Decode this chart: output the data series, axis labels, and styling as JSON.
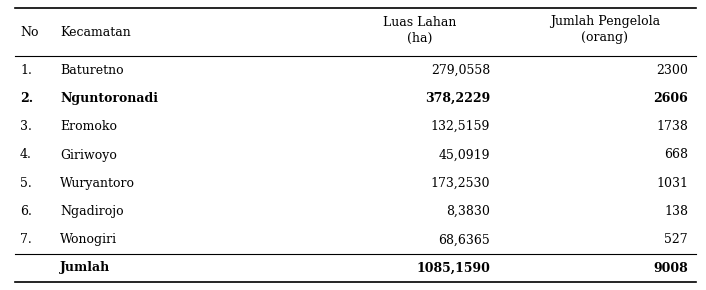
{
  "headers_line1": [
    "No",
    "Kecamatan",
    "Luas Lahan",
    "Jumlah Pengelola"
  ],
  "headers_line2": [
    "",
    "",
    "(ha)",
    "(orang)"
  ],
  "rows": [
    {
      "no": "1.",
      "kecamatan": "Baturetno",
      "luas": "279,0558",
      "jumlah": "2300",
      "bold": false
    },
    {
      "no": "2.",
      "kecamatan": "Nguntoronadi",
      "luas": "378,2229",
      "jumlah": "2606",
      "bold": true
    },
    {
      "no": "3.",
      "kecamatan": "Eromoko",
      "luas": "132,5159",
      "jumlah": "1738",
      "bold": false
    },
    {
      "no": "4.",
      "kecamatan": "Giriwoyo",
      "luas": "45,0919",
      "jumlah": "668",
      "bold": false
    },
    {
      "no": "5.",
      "kecamatan": "Wuryantoro",
      "luas": "173,2530",
      "jumlah": "1031",
      "bold": false
    },
    {
      "no": "6.",
      "kecamatan": "Ngadirojo",
      "luas": "8,3830",
      "jumlah": "138",
      "bold": false
    },
    {
      "no": "7.",
      "kecamatan": "Wonogiri",
      "luas": "68,6365",
      "jumlah": "527",
      "bold": false
    }
  ],
  "footer": {
    "kecamatan": "Jumlah",
    "luas": "1085,1590",
    "jumlah": "9008"
  },
  "bg_color": "#ffffff",
  "text_color": "#000000",
  "font_size": 9.0,
  "figwidth": 7.06,
  "figheight": 2.9
}
